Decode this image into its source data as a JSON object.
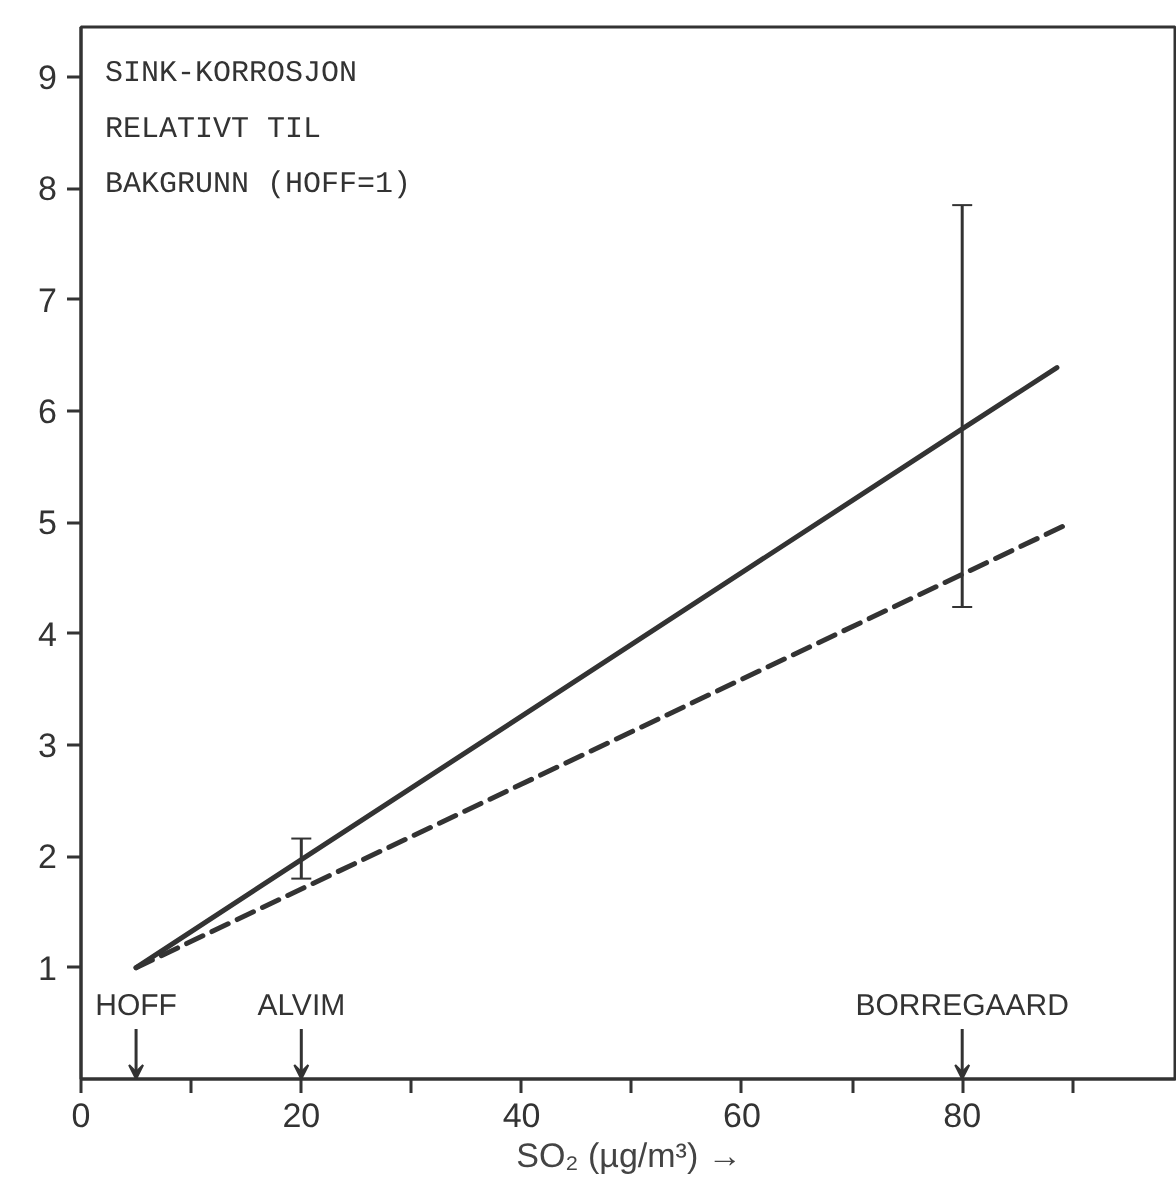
{
  "chart_data": {
    "type": "line",
    "title": "SINK-KORROSJON\nRELATIVT TIL\nBAKGRUNN (HOFF=1)",
    "xlabel": "SO₂ (µg/m³) →",
    "xlim": [
      0,
      99.5
    ],
    "ylim": [
      0,
      9.45
    ],
    "xticks": [
      0,
      {
        "value": 10,
        "label": null
      },
      20,
      {
        "value": 30,
        "label": null
      },
      40,
      {
        "value": 50,
        "label": null
      },
      60,
      {
        "value": 70,
        "label": null
      },
      80,
      {
        "value": 90,
        "label": null
      }
    ],
    "yticks": [
      1,
      2,
      3,
      4,
      5,
      6,
      7,
      8,
      9
    ],
    "series": [
      {
        "color": "#333333",
        "line_style": "solid",
        "x": [
          5,
          20,
          80,
          88.6
        ],
        "values": [
          1,
          1.97,
          5.84,
          6.39
        ],
        "errors": [
          null,
          [
            1.8,
            2.16
          ],
          [
            4.24,
            7.85
          ],
          null
        ]
      },
      {
        "color": "#333333",
        "line_style": "dashed",
        "x": [
          5,
          89.9
        ],
        "values": [
          1,
          5.0
        ]
      }
    ],
    "annotations": [
      "HOFF",
      "ALVIM",
      "BORREGAARD"
    ]
  }
}
